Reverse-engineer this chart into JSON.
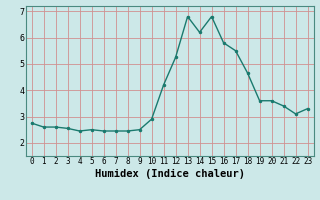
{
  "x": [
    0,
    1,
    2,
    3,
    4,
    5,
    6,
    7,
    8,
    9,
    10,
    11,
    12,
    13,
    14,
    15,
    16,
    17,
    18,
    19,
    20,
    21,
    22,
    23
  ],
  "y": [
    2.75,
    2.6,
    2.6,
    2.55,
    2.45,
    2.5,
    2.45,
    2.45,
    2.45,
    2.5,
    2.9,
    4.2,
    5.25,
    6.8,
    6.2,
    6.8,
    5.8,
    5.5,
    4.65,
    3.6,
    3.6,
    3.4,
    3.1,
    3.3
  ],
  "line_color": "#1a7a6e",
  "marker_color": "#1a7a6e",
  "bg_color": "#cce8e8",
  "grid_color_v": "#d09090",
  "grid_color_h": "#d09090",
  "xlabel": "Humidex (Indice chaleur)",
  "ylim": [
    1.5,
    7.2
  ],
  "xlim": [
    -0.5,
    23.5
  ],
  "yticks": [
    2,
    3,
    4,
    5,
    6,
    7
  ],
  "xticks": [
    0,
    1,
    2,
    3,
    4,
    5,
    6,
    7,
    8,
    9,
    10,
    11,
    12,
    13,
    14,
    15,
    16,
    17,
    18,
    19,
    20,
    21,
    22,
    23
  ]
}
